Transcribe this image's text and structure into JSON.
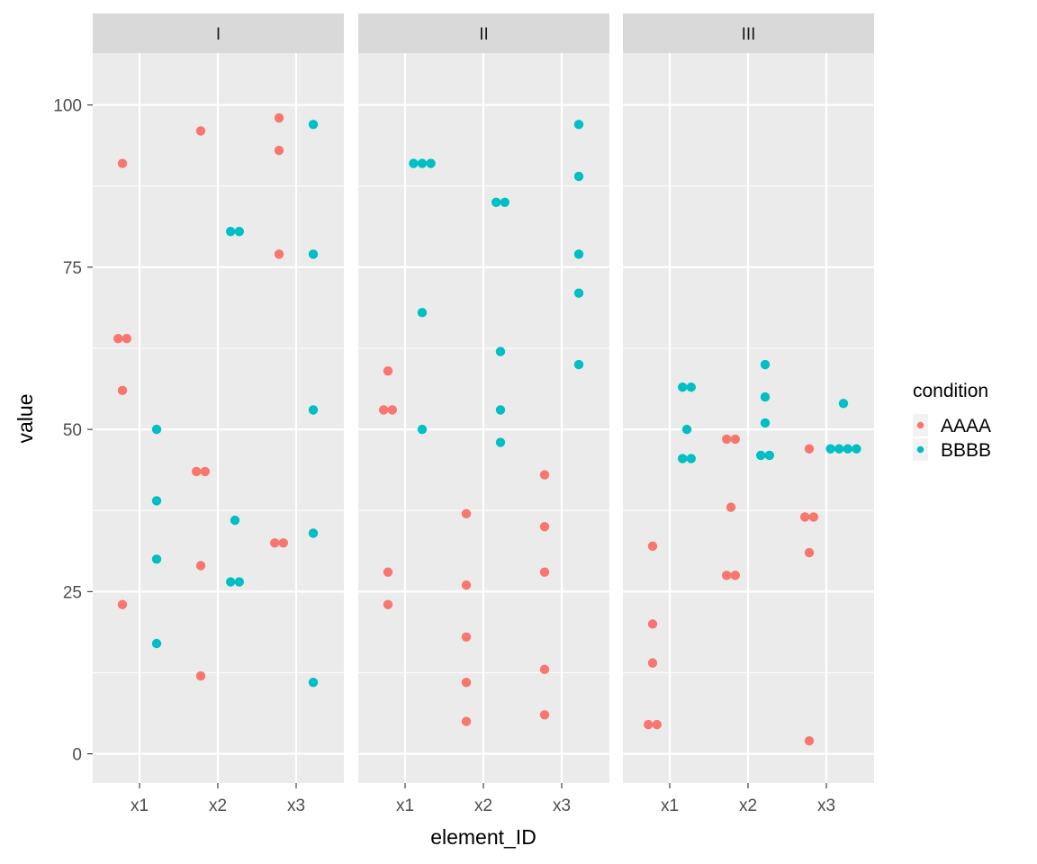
{
  "chart_data": {
    "type": "scatter",
    "xlabel": "element_ID",
    "ylabel": "value",
    "ylim": [
      -4.5,
      108
    ],
    "yticks": [
      0,
      25,
      50,
      75,
      100
    ],
    "categories": [
      "x1",
      "x2",
      "x3"
    ],
    "grid": true,
    "legend": {
      "title": "condition",
      "placement": "right",
      "entries": [
        {
          "name": "AAAA",
          "color": "#F8766D"
        },
        {
          "name": "BBBB",
          "color": "#00BFC4"
        }
      ]
    },
    "panels": [
      {
        "label": "I",
        "series": [
          {
            "name": "AAAA",
            "points": [
              {
                "x": "x1",
                "y": 91
              },
              {
                "x": "x1",
                "y": 64
              },
              {
                "x": "x1",
                "y": 64
              },
              {
                "x": "x1",
                "y": 56
              },
              {
                "x": "x1",
                "y": 23
              },
              {
                "x": "x2",
                "y": 96
              },
              {
                "x": "x2",
                "y": 43.5
              },
              {
                "x": "x2",
                "y": 43.5
              },
              {
                "x": "x2",
                "y": 29
              },
              {
                "x": "x2",
                "y": 12
              },
              {
                "x": "x3",
                "y": 98
              },
              {
                "x": "x3",
                "y": 93
              },
              {
                "x": "x3",
                "y": 77
              },
              {
                "x": "x3",
                "y": 32.5
              },
              {
                "x": "x3",
                "y": 32.5
              }
            ]
          },
          {
            "name": "BBBB",
            "points": [
              {
                "x": "x1",
                "y": 50
              },
              {
                "x": "x1",
                "y": 39
              },
              {
                "x": "x1",
                "y": 30
              },
              {
                "x": "x1",
                "y": 17
              },
              {
                "x": "x2",
                "y": 80.5
              },
              {
                "x": "x2",
                "y": 80.5
              },
              {
                "x": "x2",
                "y": 36
              },
              {
                "x": "x2",
                "y": 26.5
              },
              {
                "x": "x2",
                "y": 26.5
              },
              {
                "x": "x3",
                "y": 97
              },
              {
                "x": "x3",
                "y": 77
              },
              {
                "x": "x3",
                "y": 53
              },
              {
                "x": "x3",
                "y": 34
              },
              {
                "x": "x3",
                "y": 11
              }
            ]
          }
        ]
      },
      {
        "label": "II",
        "series": [
          {
            "name": "AAAA",
            "points": [
              {
                "x": "x1",
                "y": 59
              },
              {
                "x": "x1",
                "y": 53
              },
              {
                "x": "x1",
                "y": 53
              },
              {
                "x": "x1",
                "y": 28
              },
              {
                "x": "x1",
                "y": 23
              },
              {
                "x": "x2",
                "y": 37
              },
              {
                "x": "x2",
                "y": 26
              },
              {
                "x": "x2",
                "y": 18
              },
              {
                "x": "x2",
                "y": 11
              },
              {
                "x": "x2",
                "y": 5
              },
              {
                "x": "x3",
                "y": 43
              },
              {
                "x": "x3",
                "y": 35
              },
              {
                "x": "x3",
                "y": 28
              },
              {
                "x": "x3",
                "y": 13
              },
              {
                "x": "x3",
                "y": 6
              }
            ]
          },
          {
            "name": "BBBB",
            "points": [
              {
                "x": "x1",
                "y": 91
              },
              {
                "x": "x1",
                "y": 91
              },
              {
                "x": "x1",
                "y": 91
              },
              {
                "x": "x1",
                "y": 68
              },
              {
                "x": "x1",
                "y": 50
              },
              {
                "x": "x2",
                "y": 85
              },
              {
                "x": "x2",
                "y": 85
              },
              {
                "x": "x2",
                "y": 62
              },
              {
                "x": "x2",
                "y": 53
              },
              {
                "x": "x2",
                "y": 48
              },
              {
                "x": "x3",
                "y": 97
              },
              {
                "x": "x3",
                "y": 89
              },
              {
                "x": "x3",
                "y": 77
              },
              {
                "x": "x3",
                "y": 71
              },
              {
                "x": "x3",
                "y": 60
              }
            ]
          }
        ]
      },
      {
        "label": "III",
        "series": [
          {
            "name": "AAAA",
            "points": [
              {
                "x": "x1",
                "y": 32
              },
              {
                "x": "x1",
                "y": 20
              },
              {
                "x": "x1",
                "y": 14
              },
              {
                "x": "x1",
                "y": 4.5
              },
              {
                "x": "x1",
                "y": 4.5
              },
              {
                "x": "x2",
                "y": 48.5
              },
              {
                "x": "x2",
                "y": 48.5
              },
              {
                "x": "x2",
                "y": 38
              },
              {
                "x": "x2",
                "y": 27.5
              },
              {
                "x": "x2",
                "y": 27.5
              },
              {
                "x": "x3",
                "y": 47
              },
              {
                "x": "x3",
                "y": 36.5
              },
              {
                "x": "x3",
                "y": 36.5
              },
              {
                "x": "x3",
                "y": 31
              },
              {
                "x": "x3",
                "y": 2
              }
            ]
          },
          {
            "name": "BBBB",
            "points": [
              {
                "x": "x1",
                "y": 56.5
              },
              {
                "x": "x1",
                "y": 56.5
              },
              {
                "x": "x1",
                "y": 50
              },
              {
                "x": "x1",
                "y": 45.5
              },
              {
                "x": "x1",
                "y": 45.5
              },
              {
                "x": "x2",
                "y": 60
              },
              {
                "x": "x2",
                "y": 55
              },
              {
                "x": "x2",
                "y": 51
              },
              {
                "x": "x2",
                "y": 46
              },
              {
                "x": "x2",
                "y": 46
              },
              {
                "x": "x3",
                "y": 54
              },
              {
                "x": "x3",
                "y": 47
              },
              {
                "x": "x3",
                "y": 47
              },
              {
                "x": "x3",
                "y": 47
              },
              {
                "x": "x3",
                "y": 47
              }
            ]
          }
        ]
      }
    ]
  }
}
